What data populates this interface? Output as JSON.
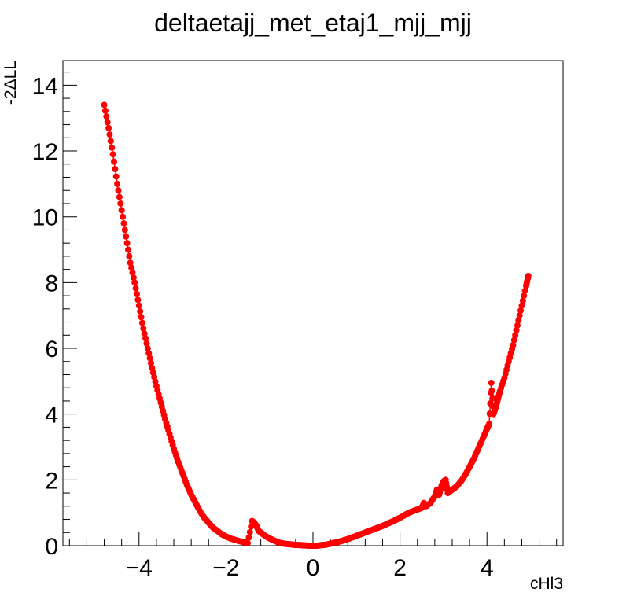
{
  "chart_data": {
    "type": "scatter",
    "title": "deltaetajj_met_etaj1_mjj_mjj",
    "xlabel": "cHl3",
    "ylabel": "-2ΔLL",
    "xlim": [
      -5.75,
      5.75
    ],
    "ylim": [
      0,
      14.75
    ],
    "xticks": [
      -4,
      -2,
      0,
      2,
      4
    ],
    "xtick_labels": [
      "−4",
      "−2",
      "0",
      "2",
      "4"
    ],
    "yticks": [
      0,
      2,
      4,
      6,
      8,
      10,
      12,
      14
    ],
    "ytick_labels": [
      "0",
      "2",
      "4",
      "6",
      "8",
      "10",
      "12",
      "14"
    ],
    "grid": false,
    "legend": "none",
    "series": [
      {
        "color": "#ff0000",
        "marker": "circle",
        "connected": true,
        "x": [
          -4.8,
          -4.7,
          -4.6,
          -4.5,
          -4.4,
          -4.3,
          -4.2,
          -4.1,
          -4.0,
          -3.9,
          -3.8,
          -3.7,
          -3.6,
          -3.5,
          -3.4,
          -3.3,
          -3.2,
          -3.1,
          -3.0,
          -2.9,
          -2.8,
          -2.7,
          -2.6,
          -2.5,
          -2.4,
          -2.3,
          -2.2,
          -2.1,
          -2.0,
          -1.9,
          -1.8,
          -1.7,
          -1.6,
          -1.5,
          -1.4,
          -1.35,
          -1.3,
          -1.25,
          -1.2,
          -1.1,
          -1.0,
          -0.9,
          -0.8,
          -0.7,
          -0.6,
          -0.5,
          -0.4,
          -0.3,
          -0.2,
          -0.1,
          0.0,
          0.1,
          0.2,
          0.3,
          0.4,
          0.5,
          0.6,
          0.7,
          0.8,
          0.9,
          1.0,
          1.1,
          1.2,
          1.3,
          1.4,
          1.5,
          1.6,
          1.7,
          1.8,
          1.9,
          2.0,
          2.1,
          2.2,
          2.3,
          2.4,
          2.5,
          2.55,
          2.6,
          2.7,
          2.8,
          2.85,
          2.9,
          2.95,
          3.0,
          3.05,
          3.1,
          3.2,
          3.3,
          3.4,
          3.5,
          3.6,
          3.7,
          3.8,
          3.9,
          4.0,
          4.05,
          4.1,
          4.15,
          4.2,
          4.25,
          4.3,
          4.4,
          4.5,
          4.6,
          4.7,
          4.8,
          4.9,
          4.95
        ],
        "y": [
          13.4,
          12.7,
          11.9,
          11.0,
          10.2,
          9.4,
          8.6,
          8.0,
          7.3,
          6.6,
          6.0,
          5.4,
          4.85,
          4.35,
          3.85,
          3.4,
          2.95,
          2.55,
          2.2,
          1.85,
          1.55,
          1.3,
          1.05,
          0.85,
          0.7,
          0.55,
          0.45,
          0.35,
          0.28,
          0.22,
          0.18,
          0.14,
          0.11,
          0.08,
          0.75,
          0.7,
          0.6,
          0.45,
          0.4,
          0.3,
          0.22,
          0.16,
          0.1,
          0.07,
          0.05,
          0.04,
          0.02,
          0.02,
          0.01,
          0.0,
          0.0,
          0.0,
          0.02,
          0.03,
          0.06,
          0.09,
          0.12,
          0.16,
          0.2,
          0.25,
          0.3,
          0.35,
          0.4,
          0.45,
          0.5,
          0.55,
          0.6,
          0.66,
          0.72,
          0.78,
          0.85,
          0.92,
          1.0,
          1.05,
          1.1,
          1.15,
          1.3,
          1.2,
          1.3,
          1.5,
          1.7,
          1.55,
          1.8,
          1.95,
          2.0,
          1.6,
          1.7,
          1.8,
          1.95,
          2.15,
          2.4,
          2.65,
          2.95,
          3.25,
          3.55,
          3.7,
          4.95,
          4.0,
          4.2,
          4.45,
          4.7,
          5.1,
          5.6,
          6.1,
          6.7,
          7.3,
          7.9,
          8.2
        ]
      }
    ]
  }
}
